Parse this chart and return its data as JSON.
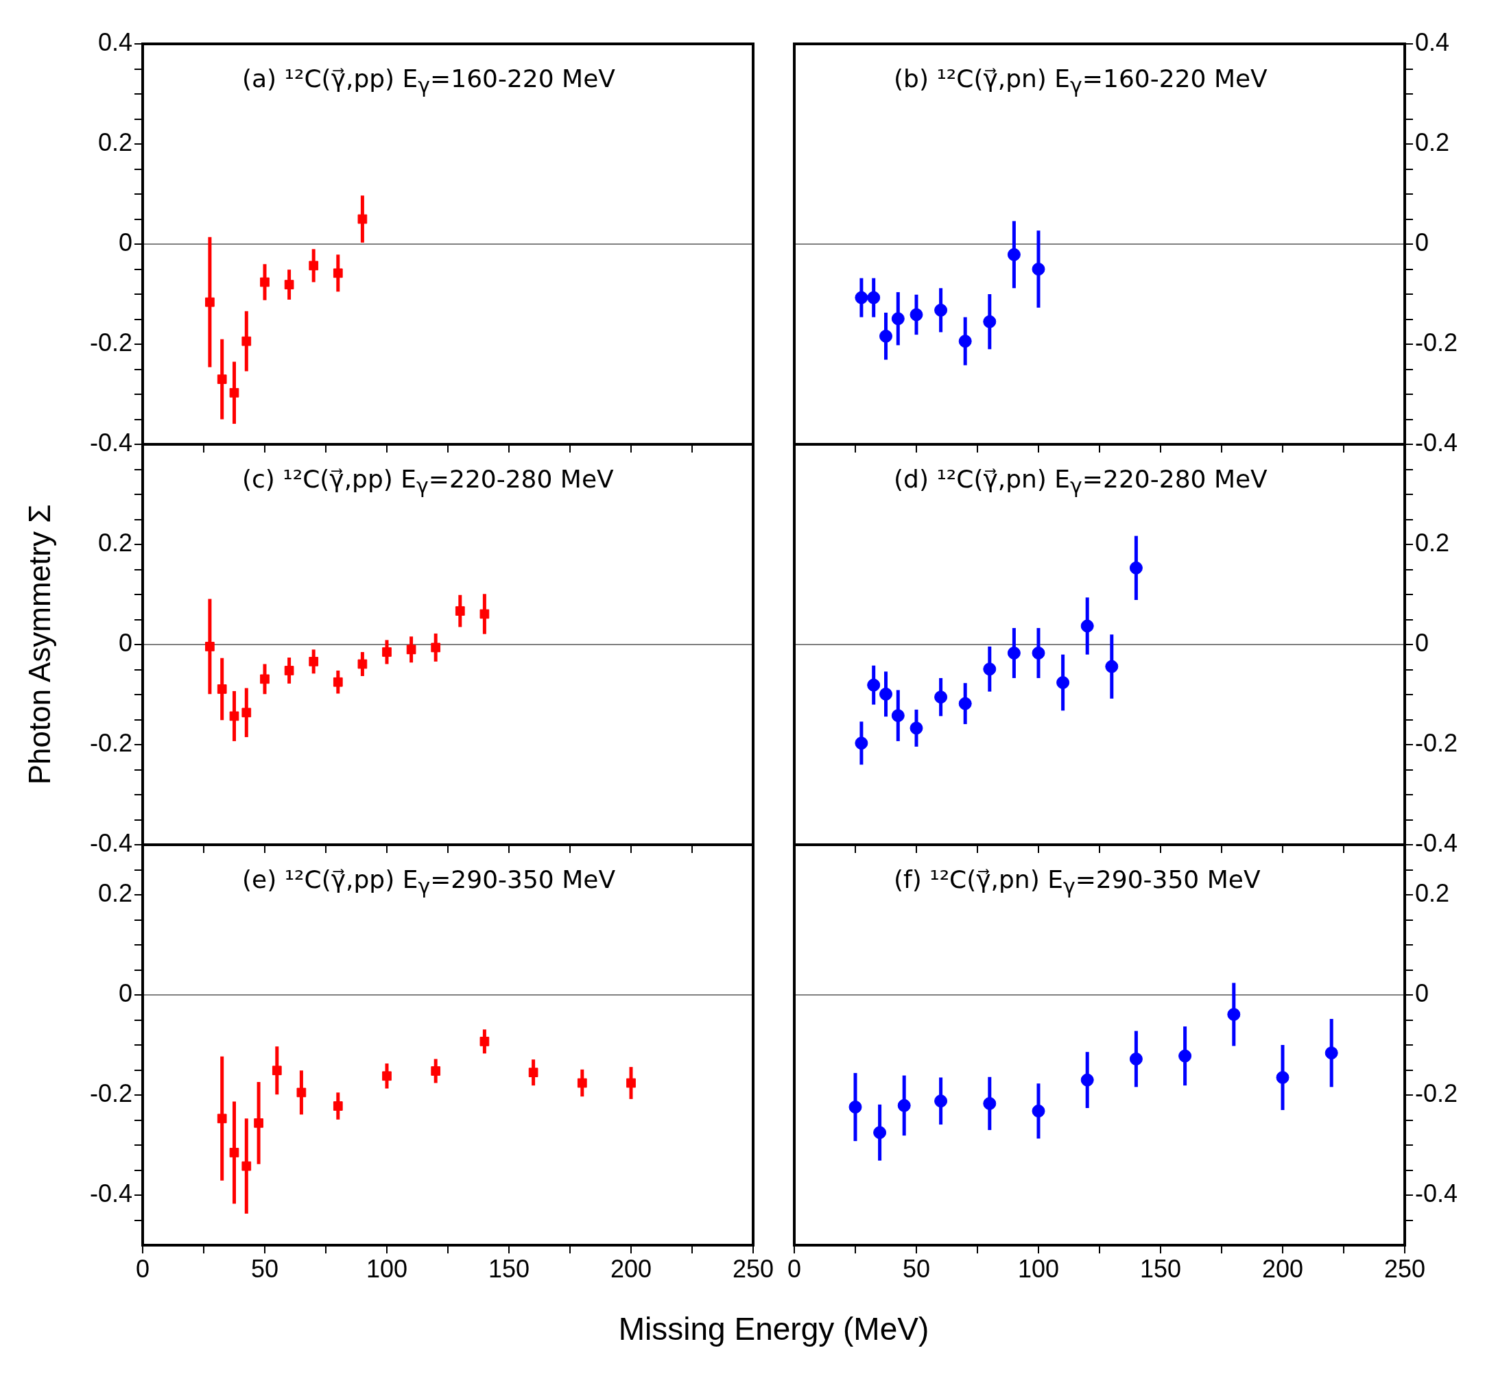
{
  "chart_data": [
    {
      "type": "scatter",
      "title": "(a) ¹²C(γ⃗,pp)  E$_{γ}$=160-220 MeV",
      "marker": "square",
      "tick_labels": "y",
      "x": [
        27.5,
        32.5,
        37.5,
        42.5,
        50,
        60,
        70,
        80,
        90
      ],
      "series": [
        {
          "color": "#ff0000",
          "values": [
            -0.116,
            -0.27,
            -0.297,
            -0.194,
            -0.076,
            -0.081,
            -0.043,
            -0.058,
            0.05
          ],
          "errors": [
            0.13,
            0.08,
            0.062,
            0.06,
            0.036,
            0.03,
            0.033,
            0.037,
            0.047
          ]
        }
      ],
      "xlim": [
        0,
        250
      ],
      "xticks": [
        0,
        {
          "value": 25,
          "label": null
        },
        50,
        {
          "value": 75,
          "label": null
        },
        100,
        {
          "value": 125,
          "label": null
        },
        150,
        {
          "value": 175,
          "label": null
        },
        200,
        {
          "value": 225,
          "label": null
        },
        250
      ],
      "ylim": [
        -0.4,
        0.4
      ],
      "yticks": [
        -0.4,
        {
          "value": -0.35,
          "label": null
        },
        {
          "value": -0.3,
          "label": null
        },
        {
          "value": -0.25,
          "label": null
        },
        -0.2,
        {
          "value": -0.15,
          "label": null
        },
        {
          "value": -0.1,
          "label": null
        },
        {
          "value": -0.05,
          "label": null
        },
        0,
        {
          "value": 0.05,
          "label": null
        },
        {
          "value": 0.1,
          "label": null
        },
        {
          "value": 0.15,
          "label": null
        },
        0.2,
        {
          "value": 0.25,
          "label": null
        },
        {
          "value": 0.3,
          "label": null
        },
        {
          "value": 0.35,
          "label": null
        },
        0.4
      ],
      "ref_lines": [
        {
          "axis": "y",
          "value": 0,
          "color": "#808080"
        }
      ]
    },
    {
      "type": "scatter",
      "title": "(b) ¹²C(γ⃗,pn)  E$_{γ}$=160-220 MeV",
      "marker": "circle",
      "tick_labels": "y",
      "x": [
        27.5,
        32.5,
        37.5,
        42.5,
        50,
        60,
        70,
        80,
        90,
        100
      ],
      "series": [
        {
          "color": "#0000ff",
          "axis": "y2",
          "values": [
            -0.107,
            -0.107,
            -0.184,
            -0.149,
            -0.141,
            -0.132,
            -0.194,
            -0.155,
            -0.021,
            -0.05
          ],
          "errors": [
            0.039,
            0.039,
            0.047,
            0.053,
            0.04,
            0.044,
            0.048,
            0.055,
            0.067,
            0.077
          ]
        }
      ],
      "xlim": [
        0,
        250
      ],
      "xticks": [
        0,
        {
          "value": 25,
          "label": null
        },
        50,
        {
          "value": 75,
          "label": null
        },
        100,
        {
          "value": 125,
          "label": null
        },
        150,
        {
          "value": 175,
          "label": null
        },
        200,
        {
          "value": 225,
          "label": null
        },
        250
      ],
      "y2lim": [
        -0.4,
        0.4
      ],
      "y2ticks": [
        -0.4,
        {
          "value": -0.35,
          "label": null
        },
        {
          "value": -0.3,
          "label": null
        },
        {
          "value": -0.25,
          "label": null
        },
        -0.2,
        {
          "value": -0.15,
          "label": null
        },
        {
          "value": -0.1,
          "label": null
        },
        {
          "value": -0.05,
          "label": null
        },
        0,
        {
          "value": 0.05,
          "label": null
        },
        {
          "value": 0.1,
          "label": null
        },
        {
          "value": 0.15,
          "label": null
        },
        0.2,
        {
          "value": 0.25,
          "label": null
        },
        {
          "value": 0.3,
          "label": null
        },
        {
          "value": 0.35,
          "label": null
        },
        0.4
      ],
      "ref_lines": [
        {
          "axis": "y2",
          "value": 0,
          "color": "#808080"
        }
      ]
    },
    {
      "type": "scatter",
      "title": "(c) ¹²C(γ⃗,pp)  E$_{γ}$=220-280 MeV",
      "ylabel": "Photon Asymmetry Σ",
      "marker": "square",
      "tick_labels": "y",
      "x": [
        27.5,
        32.5,
        37.5,
        42.5,
        50,
        60,
        70,
        80,
        90,
        100,
        110,
        120,
        130,
        140
      ],
      "series": [
        {
          "color": "#ff0000",
          "values": [
            -0.004,
            -0.089,
            -0.143,
            -0.136,
            -0.069,
            -0.052,
            -0.034,
            -0.075,
            -0.039,
            -0.015,
            -0.01,
            -0.006,
            0.067,
            0.061
          ],
          "errors": [
            0.095,
            0.062,
            0.05,
            0.049,
            0.03,
            0.026,
            0.024,
            0.023,
            0.024,
            0.024,
            0.026,
            0.028,
            0.032,
            0.04
          ]
        }
      ],
      "xlim": [
        0,
        250
      ],
      "xticks": [
        0,
        {
          "value": 25,
          "label": null
        },
        50,
        {
          "value": 75,
          "label": null
        },
        100,
        {
          "value": 125,
          "label": null
        },
        150,
        {
          "value": 175,
          "label": null
        },
        200,
        {
          "value": 225,
          "label": null
        },
        250
      ],
      "ylim": [
        -0.4,
        0.4
      ],
      "yticks": [
        -0.4,
        {
          "value": -0.35,
          "label": null
        },
        {
          "value": -0.3,
          "label": null
        },
        {
          "value": -0.25,
          "label": null
        },
        -0.2,
        {
          "value": -0.15,
          "label": null
        },
        {
          "value": -0.1,
          "label": null
        },
        {
          "value": -0.05,
          "label": null
        },
        0,
        {
          "value": 0.05,
          "label": null
        },
        {
          "value": 0.1,
          "label": null
        },
        {
          "value": 0.15,
          "label": null
        },
        0.2,
        {
          "value": 0.25,
          "label": null
        },
        {
          "value": 0.3,
          "label": null
        },
        {
          "value": 0.35,
          "label": null
        },
        {
          "value": 0.4,
          "label": null
        }
      ],
      "ref_lines": [
        {
          "axis": "y",
          "value": 0,
          "color": "#808080"
        }
      ]
    },
    {
      "type": "scatter",
      "title": "(d) ¹²C(γ⃗,pn)  E$_{γ}$=220-280 MeV",
      "marker": "circle",
      "tick_labels": "y",
      "x": [
        27.5,
        32.5,
        37.5,
        42.5,
        50,
        60,
        70,
        80,
        90,
        100,
        110,
        120,
        130,
        140
      ],
      "series": [
        {
          "color": "#0000ff",
          "axis": "y2",
          "values": [
            -0.197,
            -0.081,
            -0.099,
            -0.142,
            -0.167,
            -0.105,
            -0.118,
            -0.049,
            -0.017,
            -0.017,
            -0.076,
            0.037,
            -0.044,
            0.153
          ],
          "errors": [
            0.043,
            0.039,
            0.045,
            0.051,
            0.037,
            0.038,
            0.041,
            0.045,
            0.05,
            0.05,
            0.056,
            0.057,
            0.064,
            0.064
          ]
        }
      ],
      "xlim": [
        0,
        250
      ],
      "xticks": [
        0,
        {
          "value": 25,
          "label": null
        },
        50,
        {
          "value": 75,
          "label": null
        },
        100,
        {
          "value": 125,
          "label": null
        },
        150,
        {
          "value": 175,
          "label": null
        },
        200,
        {
          "value": 225,
          "label": null
        },
        250
      ],
      "y2lim": [
        -0.4,
        0.4
      ],
      "y2ticks": [
        -0.4,
        {
          "value": -0.35,
          "label": null
        },
        {
          "value": -0.3,
          "label": null
        },
        {
          "value": -0.25,
          "label": null
        },
        -0.2,
        {
          "value": -0.15,
          "label": null
        },
        {
          "value": -0.1,
          "label": null
        },
        {
          "value": -0.05,
          "label": null
        },
        0,
        {
          "value": 0.05,
          "label": null
        },
        {
          "value": 0.1,
          "label": null
        },
        {
          "value": 0.15,
          "label": null
        },
        0.2,
        {
          "value": 0.25,
          "label": null
        },
        {
          "value": 0.3,
          "label": null
        },
        {
          "value": 0.35,
          "label": null
        },
        {
          "value": 0.4,
          "label": null
        }
      ],
      "ref_lines": [
        {
          "axis": "y2",
          "value": 0,
          "color": "#808080"
        }
      ]
    },
    {
      "type": "scatter",
      "title": "(e) ¹²C(γ⃗,pp)  E$_{γ}$=290-350 MeV",
      "xlabel": "Missing Energy (MeV)",
      "marker": "square",
      "x": [
        32.5,
        37.5,
        42.5,
        47.5,
        55,
        65,
        80,
        100,
        120,
        140,
        160,
        180,
        200
      ],
      "series": [
        {
          "color": "#ff0000",
          "values": [
            -0.247,
            -0.315,
            -0.342,
            -0.256,
            -0.151,
            -0.195,
            -0.222,
            -0.162,
            -0.152,
            -0.093,
            -0.155,
            -0.176,
            -0.176
          ],
          "errors": [
            0.124,
            0.102,
            0.095,
            0.082,
            0.048,
            0.044,
            0.027,
            0.025,
            0.024,
            0.024,
            0.026,
            0.027,
            0.032
          ]
        }
      ],
      "xlim": [
        0,
        250
      ],
      "xticks": [
        0,
        {
          "value": 25,
          "label": null
        },
        50,
        {
          "value": 75,
          "label": null
        },
        100,
        {
          "value": 125,
          "label": null
        },
        150,
        {
          "value": 175,
          "label": null
        },
        200,
        {
          "value": 225,
          "label": null
        },
        250
      ],
      "ylim": [
        -0.5,
        0.3
      ],
      "yticks": [
        {
          "value": -0.45,
          "label": null
        },
        -0.4,
        {
          "value": -0.35,
          "label": null
        },
        {
          "value": -0.3,
          "label": null
        },
        {
          "value": -0.25,
          "label": null
        },
        -0.2,
        {
          "value": -0.15,
          "label": null
        },
        {
          "value": -0.1,
          "label": null
        },
        {
          "value": -0.05,
          "label": null
        },
        0,
        {
          "value": 0.05,
          "label": null
        },
        {
          "value": 0.1,
          "label": null
        },
        {
          "value": 0.15,
          "label": null
        },
        0.2,
        {
          "value": 0.25,
          "label": null
        }
      ],
      "ref_lines": [
        {
          "axis": "y",
          "value": 0,
          "color": "#808080"
        }
      ]
    },
    {
      "type": "scatter",
      "title": "(f) ¹²C(γ⃗,pn)  E$_{γ}$=290-350 MeV",
      "marker": "circle",
      "x": [
        25,
        35,
        45,
        60,
        80,
        100,
        120,
        140,
        160,
        180,
        200,
        220
      ],
      "series": [
        {
          "color": "#0000ff",
          "axis": "y2",
          "values": [
            -0.224,
            -0.275,
            -0.221,
            -0.212,
            -0.217,
            -0.232,
            -0.17,
            -0.128,
            -0.122,
            -0.039,
            -0.165,
            -0.116
          ],
          "errors": [
            0.068,
            0.056,
            0.06,
            0.047,
            0.053,
            0.055,
            0.056,
            0.056,
            0.059,
            0.063,
            0.065,
            0.068
          ]
        }
      ],
      "xlim": [
        0,
        250
      ],
      "xticks": [
        0,
        {
          "value": 25,
          "label": null
        },
        50,
        {
          "value": 75,
          "label": null
        },
        100,
        {
          "value": 125,
          "label": null
        },
        150,
        {
          "value": 175,
          "label": null
        },
        200,
        {
          "value": 225,
          "label": null
        },
        250
      ],
      "y2lim": [
        -0.5,
        0.3
      ],
      "y2ticks": [
        {
          "value": -0.45,
          "label": null
        },
        -0.4,
        {
          "value": -0.35,
          "label": null
        },
        {
          "value": -0.3,
          "label": null
        },
        {
          "value": -0.25,
          "label": null
        },
        -0.2,
        {
          "value": -0.15,
          "label": null
        },
        {
          "value": -0.1,
          "label": null
        },
        {
          "value": -0.05,
          "label": null
        },
        0,
        {
          "value": 0.05,
          "label": null
        },
        {
          "value": 0.1,
          "label": null
        },
        {
          "value": 0.15,
          "label": null
        },
        0.2,
        {
          "value": 0.25,
          "label": null
        }
      ],
      "ref_lines": [
        {
          "axis": "y2",
          "value": 0,
          "color": "#808080"
        }
      ]
    }
  ]
}
